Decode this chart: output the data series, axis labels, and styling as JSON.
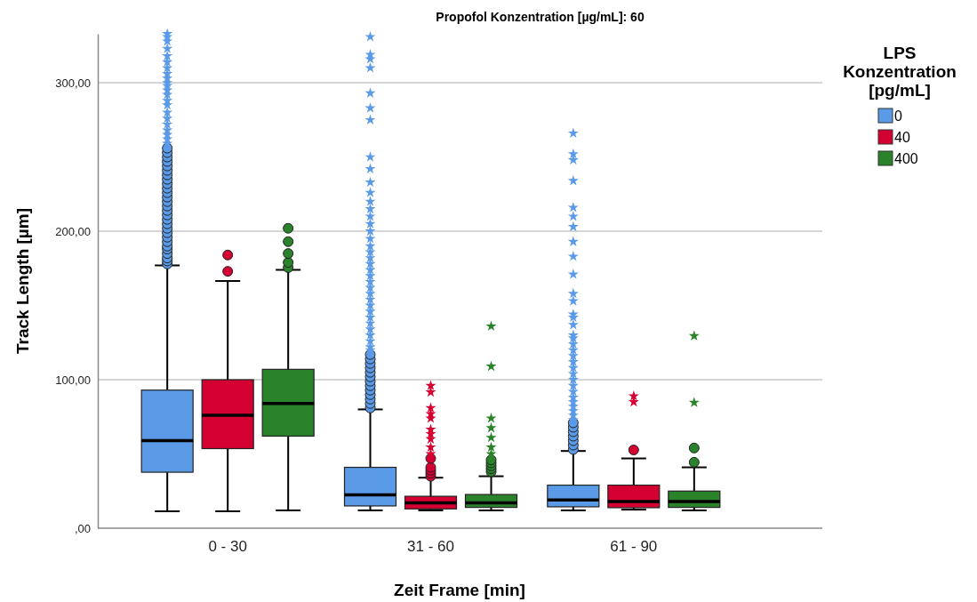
{
  "chart_data": {
    "type": "box",
    "title": "Propofol Konzentration [µg/mL]: 60",
    "xlabel": "Zeit Frame [min]",
    "ylabel": "Track Length [µm]",
    "legend_title": "LPS Konzentration [pg/mL]",
    "legend": "top right",
    "grid": "y",
    "categories": [
      "0 - 30",
      "31 - 60",
      "61 - 90"
    ],
    "ylim": [
      0,
      333
    ],
    "yticks": [
      {
        "value": 0,
        "label": ",00"
      },
      {
        "value": 100,
        "label": "100,00"
      },
      {
        "value": 200,
        "label": "200,00"
      },
      {
        "value": 300,
        "label": "300,00"
      }
    ],
    "series": [
      {
        "name": "0",
        "color": "#5a9ae6",
        "boxes": [
          {
            "low": 11.4,
            "q1": 37.7,
            "median": 59,
            "q3": 93,
            "high": 177,
            "outliers": [
              178,
              180,
              182,
              185,
              188,
              190,
              193,
              196,
              199,
              202,
              205,
              208,
              211,
              214,
              217,
              220,
              223,
              226,
              229,
              232,
              235,
              238,
              241,
              244,
              247,
              250,
              253,
              256,
              259,
              262,
              265,
              268,
              272,
              276,
              280,
              285,
              288,
              292,
              295,
              298,
              300,
              303,
              306,
              310,
              314,
              318,
              323,
              328,
              331,
              333
            ]
          },
          {
            "low": 12,
            "q1": 15,
            "median": 22.5,
            "q3": 41,
            "high": 80,
            "outliers": [
              81,
              84,
              87,
              90,
              93,
              96,
              99,
              102,
              105,
              108,
              111,
              114,
              117,
              120,
              122,
              126,
              130,
              134,
              138,
              142,
              146,
              150,
              154,
              158,
              162,
              166,
              170,
              174,
              178,
              182,
              186,
              190,
              195,
              200,
              205,
              210,
              215,
              220,
              226,
              233,
              242,
              250,
              275,
              283,
              293,
              310,
              316,
              319,
              331
            ]
          },
          {
            "low": 12,
            "q1": 14.4,
            "median": 19,
            "q3": 29,
            "high": 52,
            "outliers": [
              53,
              56,
              59,
              62,
              65,
              68,
              71,
              73,
              76,
              79,
              82,
              85,
              88,
              92,
              96,
              100,
              104,
              108,
              112,
              116,
              120,
              124,
              128,
              130,
              137,
              142,
              144,
              153,
              158,
              171,
              183,
              193,
              203,
              210,
              216,
              234,
              248,
              252,
              266
            ]
          }
        ]
      },
      {
        "name": "40",
        "color": "#d50032",
        "boxes": [
          {
            "low": 11.4,
            "q1": 53.6,
            "median": 76,
            "q3": 100,
            "high": 166.5,
            "outliers": [
              173,
              184
            ]
          },
          {
            "low": 12,
            "q1": 13,
            "median": 17,
            "q3": 21.5,
            "high": 34,
            "outliers": [
              35,
              37,
              39,
              41,
              47,
              50,
              54.5,
              60,
              63.5,
              66.5,
              74,
              77,
              81,
              91.6,
              96
            ]
          },
          {
            "low": 12.5,
            "q1": 13.8,
            "median": 18,
            "q3": 29,
            "high": 47,
            "outliers": [
              52.7,
              85,
              89
            ]
          }
        ]
      },
      {
        "name": "400",
        "color": "#2a832a",
        "boxes": [
          {
            "low": 12,
            "q1": 62,
            "median": 84,
            "q3": 107,
            "high": 174,
            "outliers": [
              175.5,
              179,
              185,
              193,
              202
            ]
          },
          {
            "low": 12,
            "q1": 14,
            "median": 17,
            "q3": 22.7,
            "high": 35,
            "outliers": [
              38,
              40,
              42,
              44,
              46,
              50,
              54.5,
              61,
              67.5,
              74,
              109,
              136
            ]
          },
          {
            "low": 12,
            "q1": 14,
            "median": 18,
            "q3": 25,
            "high": 41,
            "outliers": [
              44.4,
              54,
              84.6,
              129.5
            ]
          }
        ]
      }
    ]
  }
}
